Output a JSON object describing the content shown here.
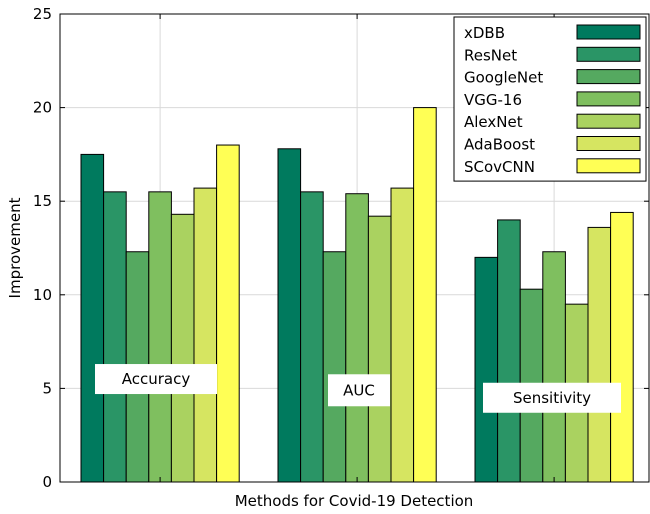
{
  "chart_data": {
    "type": "bar",
    "title": "",
    "xlabel": "Methods for Covid-19 Detection",
    "ylabel": "Improvement",
    "ylim": [
      0,
      25
    ],
    "yticks": [
      0,
      5,
      10,
      15,
      20,
      25
    ],
    "grid": true,
    "legend_position": "top-right",
    "categories": [
      "Accuracy",
      "AUC",
      "Sensitivity"
    ],
    "category_label_y": [
      5.5,
      4.9,
      4.5
    ],
    "series": [
      {
        "name": "xDBB",
        "color": "#007a5e",
        "values": [
          17.5,
          17.8,
          12.0
        ]
      },
      {
        "name": "ResNet",
        "color": "#2a9566",
        "values": [
          15.5,
          15.5,
          14.0
        ]
      },
      {
        "name": "GoogleNet",
        "color": "#55a960",
        "values": [
          12.3,
          12.3,
          10.3
        ]
      },
      {
        "name": "VGG-16",
        "color": "#7fbf5f",
        "values": [
          15.5,
          15.4,
          12.3
        ]
      },
      {
        "name": "AlexNet",
        "color": "#aad260",
        "values": [
          14.3,
          14.2,
          9.5
        ]
      },
      {
        "name": "AdaBoost",
        "color": "#d6e561",
        "values": [
          15.7,
          15.7,
          13.6
        ]
      },
      {
        "name": "SCovCNN",
        "color": "#ffff55",
        "values": [
          18.0,
          20.0,
          14.4
        ]
      }
    ]
  }
}
